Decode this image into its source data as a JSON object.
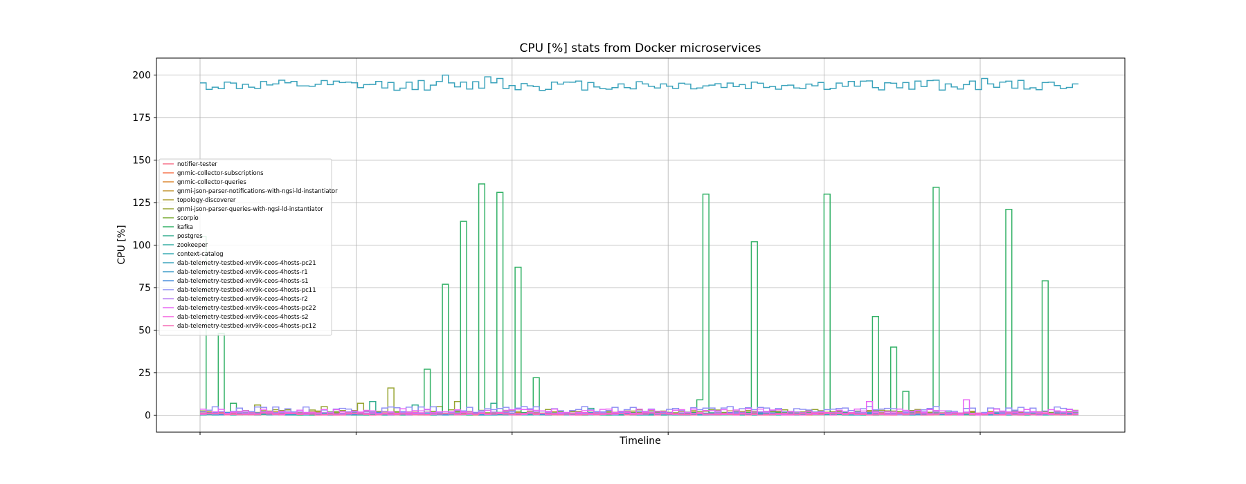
{
  "chart_data": {
    "type": "line",
    "step": true,
    "title": "CPU [%] stats from Docker microservices",
    "xlabel": "Timeline",
    "ylabel": "CPU [%]",
    "ylim": [
      -10,
      210
    ],
    "xlim": [
      -0.28,
      5.93
    ],
    "yticks": [
      0,
      25,
      50,
      75,
      100,
      125,
      150,
      175,
      200
    ],
    "xticks": [
      0,
      1,
      2,
      3,
      4,
      5
    ],
    "grid": true,
    "legend_position": "center-left",
    "n_samples": 145,
    "series": [
      {
        "name": "notifier-tester",
        "color": "#f77189",
        "values": [],
        "gen": {
          "base": 0.3,
          "amp": 0.4,
          "seed": 1
        }
      },
      {
        "name": "gnmic-collector-subscriptions",
        "color": "#f7754f",
        "values": [],
        "gen": {
          "base": 0.6,
          "amp": 0.8,
          "seed": 2
        }
      },
      {
        "name": "gnmic-collector-queries",
        "color": "#dc8932",
        "values": [],
        "gen": {
          "base": 0.5,
          "amp": 0.7,
          "seed": 3
        }
      },
      {
        "name": "gnmi-json-parser-notifications-with-ngsi-ld-instantiator",
        "color": "#c39532",
        "values": [],
        "gen": {
          "base": 1.5,
          "amp": 2.0,
          "seed": 4
        }
      },
      {
        "name": "topology-discoverer",
        "color": "#ae9d31",
        "values": [],
        "gen": {
          "base": 0.4,
          "amp": 0.5,
          "seed": 5
        }
      },
      {
        "name": "gnmi-json-parser-queries-with-ngsi-ld-instantiator",
        "color": "#97a431",
        "values": [],
        "gen": {
          "base": 1.8,
          "amp": 3.0,
          "seed": 6
        },
        "spikes": [
          [
            9,
            6
          ],
          [
            20,
            5
          ],
          [
            26,
            7
          ],
          [
            31,
            16
          ],
          [
            39,
            5
          ],
          [
            42,
            8
          ]
        ]
      },
      {
        "name": "scorpio",
        "color": "#77ab31",
        "values": [],
        "gen": {
          "base": 1.2,
          "amp": 1.6,
          "seed": 7
        }
      },
      {
        "name": "kafka",
        "color": "#32b166",
        "values": [],
        "gen": {
          "base": 0.8,
          "amp": 1.8,
          "seed": 8
        },
        "spikes": [
          [
            0,
            105
          ],
          [
            3,
            48
          ],
          [
            5,
            7
          ],
          [
            37,
            27
          ],
          [
            40,
            77
          ],
          [
            43,
            114
          ],
          [
            46,
            136
          ],
          [
            49,
            131
          ],
          [
            52,
            87
          ],
          [
            55,
            22
          ],
          [
            82,
            9
          ],
          [
            83,
            130
          ],
          [
            91,
            102
          ],
          [
            103,
            130
          ],
          [
            111,
            58
          ],
          [
            114,
            40
          ],
          [
            116,
            14
          ],
          [
            121,
            134
          ],
          [
            133,
            121
          ],
          [
            139,
            79
          ]
        ]
      },
      {
        "name": "postgres",
        "color": "#34ae91",
        "values": [],
        "gen": {
          "base": 0.6,
          "amp": 1.4,
          "seed": 9
        },
        "spikes": [
          [
            28,
            8
          ],
          [
            35,
            6
          ],
          [
            48,
            7
          ],
          [
            64,
            4
          ]
        ]
      },
      {
        "name": "zookeeper",
        "color": "#36ada4",
        "values": [],
        "gen": {
          "base": 0.3,
          "amp": 0.5,
          "seed": 10
        }
      },
      {
        "name": "context-catalog",
        "color": "#38aab3",
        "values": [],
        "gen": {
          "base": 0.5,
          "amp": 1.0,
          "seed": 11
        }
      },
      {
        "name": "dab-telemetry-testbed-xrv9k-ceos-4hosts-pc21",
        "color": "#3ba3bc",
        "values": [],
        "gen": {
          "base": 194,
          "amp": 6.0,
          "seed": 12
        },
        "spikes": [
          [
            40,
            200
          ],
          [
            47,
            199
          ],
          [
            49,
            198
          ],
          [
            121,
            197
          ],
          [
            129,
            198
          ]
        ]
      },
      {
        "name": "dab-telemetry-testbed-xrv9k-ceos-4hosts-r1",
        "color": "#3f9cc8",
        "values": [],
        "gen": {
          "base": 0.7,
          "amp": 1.2,
          "seed": 13
        }
      },
      {
        "name": "dab-telemetry-testbed-xrv9k-ceos-4hosts-s1",
        "color": "#4a8fdc",
        "values": [],
        "gen": {
          "base": 0.9,
          "amp": 1.5,
          "seed": 14
        }
      },
      {
        "name": "dab-telemetry-testbed-xrv9k-ceos-4hosts-pc11",
        "color": "#8e8ff4",
        "values": [],
        "gen": {
          "base": 3.0,
          "amp": 4.0,
          "seed": 15
        }
      },
      {
        "name": "dab-telemetry-testbed-xrv9k-ceos-4hosts-r2",
        "color": "#b881f4",
        "values": [],
        "gen": {
          "base": 1.2,
          "amp": 2.0,
          "seed": 16
        }
      },
      {
        "name": "dab-telemetry-testbed-xrv9k-ceos-4hosts-pc22",
        "color": "#e865f4",
        "values": [],
        "gen": {
          "base": 2.2,
          "amp": 3.0,
          "seed": 17
        },
        "spikes": [
          [
            110,
            8
          ],
          [
            126,
            9
          ]
        ]
      },
      {
        "name": "dab-telemetry-testbed-xrv9k-ceos-4hosts-s2",
        "color": "#f461dd",
        "values": [],
        "gen": {
          "base": 0.8,
          "amp": 1.5,
          "seed": 18
        }
      },
      {
        "name": "dab-telemetry-testbed-xrv9k-ceos-4hosts-pc12",
        "color": "#f66ab4",
        "values": [],
        "gen": {
          "base": 0.6,
          "amp": 1.2,
          "seed": 19
        }
      }
    ]
  }
}
